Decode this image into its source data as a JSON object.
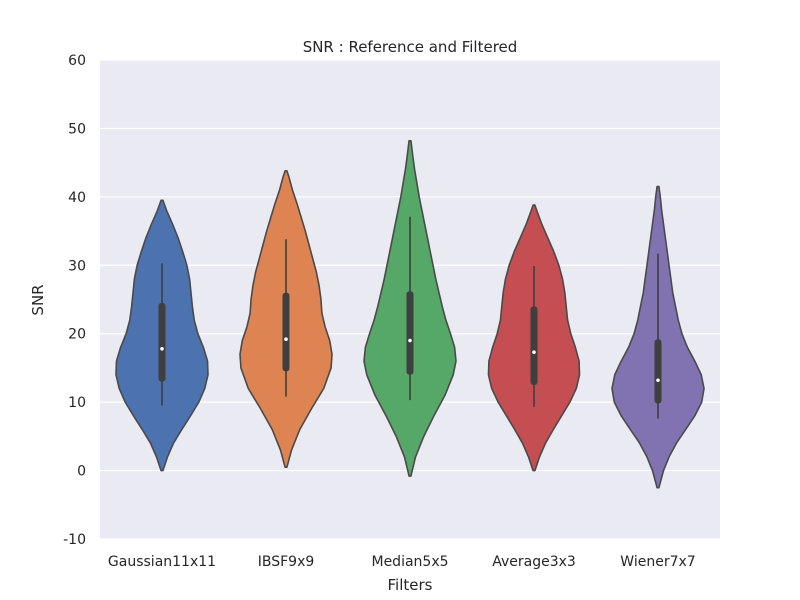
{
  "chart_data": {
    "type": "violin",
    "title": "SNR :  Reference and Filtered",
    "xlabel": "Filters",
    "ylabel": "SNR",
    "ylim": [
      -10,
      60
    ],
    "yticks": [
      -10,
      0,
      10,
      20,
      30,
      40,
      50,
      60
    ],
    "grid": true,
    "background": "#eaeaf2",
    "categories": [
      "Gaussian11x11",
      "IBSF9x9",
      "Median5x5",
      "Average3x3",
      "Wiener7x7"
    ],
    "series": [
      {
        "colour": "#4c72b0",
        "min": 0,
        "max": 39.5,
        "mode": 14,
        "whisker_low": 9.5,
        "whisker_high": 30.3,
        "q1": 13,
        "q3": 24.5,
        "median": 17.8,
        "density": [
          [
            0,
            0.02
          ],
          [
            2,
            0.12
          ],
          [
            4,
            0.25
          ],
          [
            6,
            0.43
          ],
          [
            8,
            0.62
          ],
          [
            10,
            0.8
          ],
          [
            12,
            0.93
          ],
          [
            14,
            1.0
          ],
          [
            16,
            0.99
          ],
          [
            18,
            0.9
          ],
          [
            20,
            0.78
          ],
          [
            22,
            0.7
          ],
          [
            24,
            0.66
          ],
          [
            26,
            0.63
          ],
          [
            28,
            0.6
          ],
          [
            30,
            0.54
          ],
          [
            32,
            0.45
          ],
          [
            34,
            0.35
          ],
          [
            36,
            0.23
          ],
          [
            38,
            0.1
          ],
          [
            39.5,
            0.02
          ]
        ]
      },
      {
        "colour": "#dd8452",
        "min": 0.5,
        "max": 43.8,
        "mode": 16,
        "whisker_low": 10.8,
        "whisker_high": 33.8,
        "q1": 14.5,
        "q3": 26,
        "median": 19.2,
        "density": [
          [
            0.5,
            0.02
          ],
          [
            3,
            0.12
          ],
          [
            6,
            0.3
          ],
          [
            9,
            0.55
          ],
          [
            12,
            0.82
          ],
          [
            15,
            0.98
          ],
          [
            17,
            1.0
          ],
          [
            19,
            0.95
          ],
          [
            21,
            0.85
          ],
          [
            23,
            0.78
          ],
          [
            25,
            0.76
          ],
          [
            27,
            0.72
          ],
          [
            29,
            0.66
          ],
          [
            31,
            0.58
          ],
          [
            33,
            0.5
          ],
          [
            35,
            0.42
          ],
          [
            37,
            0.33
          ],
          [
            39,
            0.24
          ],
          [
            41,
            0.14
          ],
          [
            43,
            0.06
          ],
          [
            43.8,
            0.02
          ]
        ]
      },
      {
        "colour": "#55a868",
        "min": -0.8,
        "max": 48.2,
        "mode": 16,
        "whisker_low": 10.3,
        "whisker_high": 37.1,
        "q1": 14,
        "q3": 26.2,
        "median": 19,
        "density": [
          [
            -0.8,
            0.02
          ],
          [
            2,
            0.12
          ],
          [
            5,
            0.3
          ],
          [
            8,
            0.52
          ],
          [
            11,
            0.76
          ],
          [
            14,
            0.94
          ],
          [
            16,
            1.0
          ],
          [
            18,
            0.97
          ],
          [
            20,
            0.88
          ],
          [
            22,
            0.78
          ],
          [
            24,
            0.7
          ],
          [
            26,
            0.63
          ],
          [
            28,
            0.56
          ],
          [
            30,
            0.5
          ],
          [
            32,
            0.44
          ],
          [
            34,
            0.38
          ],
          [
            36,
            0.32
          ],
          [
            38,
            0.26
          ],
          [
            40,
            0.2
          ],
          [
            42,
            0.15
          ],
          [
            44,
            0.1
          ],
          [
            46,
            0.06
          ],
          [
            48.2,
            0.02
          ]
        ]
      },
      {
        "colour": "#c44e52",
        "min": 0,
        "max": 38.8,
        "mode": 14,
        "whisker_low": 9.3,
        "whisker_high": 29.9,
        "q1": 12.5,
        "q3": 24,
        "median": 17.3,
        "density": [
          [
            0,
            0.02
          ],
          [
            2,
            0.12
          ],
          [
            4,
            0.25
          ],
          [
            6,
            0.42
          ],
          [
            8,
            0.6
          ],
          [
            10,
            0.78
          ],
          [
            12,
            0.92
          ],
          [
            14,
            0.99
          ],
          [
            16,
            0.98
          ],
          [
            18,
            0.9
          ],
          [
            20,
            0.8
          ],
          [
            22,
            0.73
          ],
          [
            24,
            0.7
          ],
          [
            26,
            0.67
          ],
          [
            28,
            0.62
          ],
          [
            30,
            0.54
          ],
          [
            32,
            0.43
          ],
          [
            34,
            0.3
          ],
          [
            36,
            0.17
          ],
          [
            38,
            0.06
          ],
          [
            38.8,
            0.02
          ]
        ]
      },
      {
        "colour": "#8172b2",
        "min": -2.5,
        "max": 41.5,
        "mode": 12,
        "whisker_low": 7.6,
        "whisker_high": 31.7,
        "q1": 9.8,
        "q3": 19.2,
        "median": 13.2,
        "density": [
          [
            -2.5,
            0.02
          ],
          [
            0,
            0.12
          ],
          [
            2,
            0.24
          ],
          [
            4,
            0.4
          ],
          [
            6,
            0.6
          ],
          [
            8,
            0.8
          ],
          [
            10,
            0.95
          ],
          [
            12,
            1.0
          ],
          [
            14,
            0.94
          ],
          [
            16,
            0.8
          ],
          [
            18,
            0.64
          ],
          [
            20,
            0.52
          ],
          [
            22,
            0.44
          ],
          [
            24,
            0.38
          ],
          [
            26,
            0.32
          ],
          [
            28,
            0.28
          ],
          [
            30,
            0.24
          ],
          [
            32,
            0.2
          ],
          [
            34,
            0.16
          ],
          [
            36,
            0.12
          ],
          [
            38,
            0.08
          ],
          [
            40,
            0.05
          ],
          [
            41.5,
            0.02
          ]
        ]
      }
    ]
  }
}
